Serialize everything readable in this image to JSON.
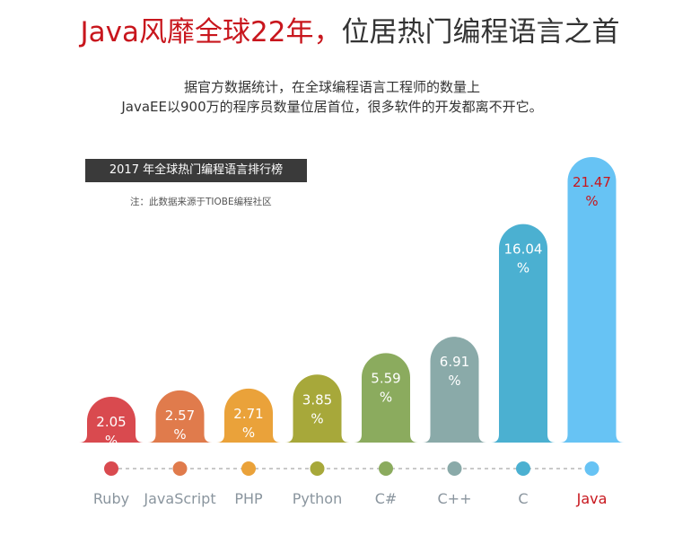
{
  "headline": {
    "accent": "Java风靡全球22年，",
    "rest": "位居热门编程语言之首",
    "accent_color": "#c8161d"
  },
  "subtitle": {
    "line1": "据官方数据统计，在全球编程语言工程师的数量上",
    "line2": "JavaEE以900万的程序员数量位居首位，很多软件的开发都离不开它。"
  },
  "chart_data": {
    "type": "bar",
    "title": "2017 年全球热门编程语言排行榜",
    "note": "注：此数据来源于TIOBE编程社区",
    "unit": "%",
    "categories": [
      "Ruby",
      "JavaScript",
      "PHP",
      "Python",
      "C#",
      "C++",
      "C",
      "Java"
    ],
    "values": [
      2.05,
      2.57,
      2.71,
      3.85,
      5.59,
      6.91,
      16.04,
      21.47
    ],
    "colors": [
      "#d94a4f",
      "#e07b4c",
      "#eaa23a",
      "#a7a83a",
      "#8bab5e",
      "#8aaaa9",
      "#4bb0d1",
      "#67c3f4"
    ],
    "highlight_category": "Java",
    "highlight_color": "#c8161d",
    "label_color": "#8a959e"
  }
}
